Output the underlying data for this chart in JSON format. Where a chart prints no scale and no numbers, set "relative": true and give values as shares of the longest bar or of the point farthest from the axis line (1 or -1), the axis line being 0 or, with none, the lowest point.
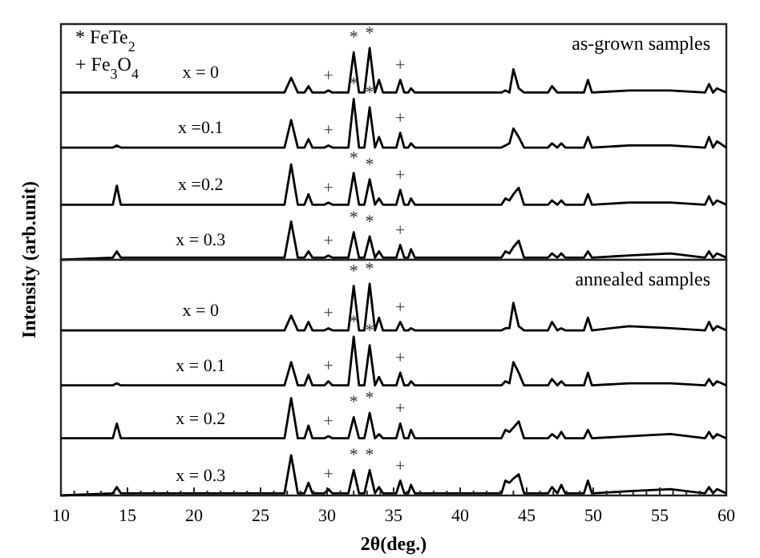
{
  "chart_data": [
    {
      "type": "line",
      "relative": true,
      "xlim": [
        10,
        60
      ],
      "ylabel": "Intensity (arb.unit)",
      "annotations": [
        "* FeTe$_{2}$",
        "+ Fe$_{3}$O$_{4}$",
        "as-grown samples",
        {
          "text": "*",
          "x": 32.0,
          "y": 0.98
        },
        {
          "text": "*",
          "x": 33.2,
          "y": 1.0
        },
        {
          "text": "+",
          "x": 30.1,
          "y": 0.8
        },
        {
          "text": "+",
          "x": 35.5,
          "y": 0.85
        },
        {
          "text": "*",
          "x": 32.0,
          "y": 0.76
        },
        {
          "text": "*",
          "x": 33.2,
          "y": 0.72
        },
        {
          "text": "+",
          "x": 30.1,
          "y": 0.54
        },
        {
          "text": "+",
          "x": 35.5,
          "y": 0.6
        },
        {
          "text": "*",
          "x": 32.0,
          "y": 0.41
        },
        {
          "text": "*",
          "x": 33.2,
          "y": 0.38
        },
        {
          "text": "+",
          "x": 30.1,
          "y": 0.27
        },
        {
          "text": "+",
          "x": 35.5,
          "y": 0.33
        },
        {
          "text": "*",
          "x": 32.0,
          "y": 0.13
        },
        {
          "text": "*",
          "x": 33.2,
          "y": 0.11
        },
        {
          "text": "+",
          "x": 30.1,
          "y": 0.02
        },
        {
          "text": "+",
          "x": 35.5,
          "y": 0.07
        }
      ],
      "x": [
        10,
        13.9,
        14.2,
        14.5,
        26.8,
        27.3,
        27.8,
        28.3,
        28.6,
        28.9,
        29.8,
        30.1,
        30.4,
        31.6,
        32.0,
        32.4,
        32.8,
        33.2,
        33.6,
        33.9,
        34.2,
        35.2,
        35.5,
        35.8,
        36.1,
        36.3,
        36.6,
        43.1,
        43.4,
        43.7,
        44.0,
        44.4,
        44.8,
        46.6,
        46.9,
        47.3,
        47.6,
        47.9,
        49.3,
        49.6,
        49.9,
        52.7,
        55.8,
        58.4,
        58.7,
        59.0,
        59.3,
        60
      ],
      "series": [
        {
          "name": "x = 0",
          "color": "#000000",
          "values": [
            0.79,
            0.79,
            0.79,
            0.79,
            0.79,
            0.86,
            0.79,
            0.79,
            0.82,
            0.79,
            0.79,
            0.8,
            0.79,
            0.79,
            0.98,
            0.79,
            0.79,
            1,
            0.79,
            0.85,
            0.79,
            0.79,
            0.85,
            0.79,
            0.79,
            0.81,
            0.79,
            0.79,
            0.8,
            0.79,
            0.9,
            0.81,
            0.79,
            0.79,
            0.82,
            0.79,
            0.79,
            0.79,
            0.79,
            0.85,
            0.79,
            0.8,
            0.8,
            0.79,
            0.83,
            0.79,
            0.81,
            0.79
          ]
        },
        {
          "name": "x =0.1",
          "color": "#000000",
          "values": [
            0.53,
            0.53,
            0.54,
            0.53,
            0.53,
            0.66,
            0.53,
            0.53,
            0.57,
            0.53,
            0.53,
            0.54,
            0.53,
            0.53,
            0.76,
            0.53,
            0.53,
            0.72,
            0.53,
            0.58,
            0.53,
            0.53,
            0.6,
            0.53,
            0.53,
            0.55,
            0.53,
            0.53,
            0.54,
            0.55,
            0.62,
            0.58,
            0.53,
            0.53,
            0.55,
            0.53,
            0.55,
            0.53,
            0.53,
            0.58,
            0.53,
            0.54,
            0.54,
            0.53,
            0.58,
            0.53,
            0.56,
            0.53
          ]
        },
        {
          "name": "x =0.2",
          "color": "#000000",
          "values": [
            0.26,
            0.26,
            0.35,
            0.26,
            0.26,
            0.45,
            0.26,
            0.26,
            0.31,
            0.26,
            0.26,
            0.27,
            0.26,
            0.26,
            0.41,
            0.26,
            0.26,
            0.38,
            0.26,
            0.29,
            0.26,
            0.26,
            0.33,
            0.26,
            0.26,
            0.29,
            0.26,
            0.26,
            0.29,
            0.28,
            0.31,
            0.34,
            0.26,
            0.26,
            0.28,
            0.26,
            0.28,
            0.26,
            0.26,
            0.31,
            0.26,
            0.27,
            0.27,
            0.26,
            0.3,
            0.26,
            0.28,
            0.26
          ]
        },
        {
          "name": "x = 0.3",
          "color": "#000000",
          "values": [
            0,
            0.01,
            0.04,
            0.01,
            0.01,
            0.18,
            0.01,
            0.01,
            0.04,
            0.01,
            0.01,
            0.02,
            0.01,
            0.01,
            0.13,
            0.01,
            0.01,
            0.11,
            0.01,
            0.04,
            0.01,
            0.01,
            0.07,
            0.01,
            0.01,
            0.05,
            0.01,
            0.01,
            0.04,
            0.03,
            0.06,
            0.09,
            0.01,
            0.01,
            0.03,
            0.01,
            0.03,
            0.01,
            0.01,
            0.04,
            0.01,
            0.02,
            0.03,
            0.01,
            0.04,
            0.01,
            0.03,
            0.01
          ]
        }
      ]
    },
    {
      "type": "line",
      "relative": true,
      "tick_labels": "x",
      "xlim": [
        10,
        60
      ],
      "xlabel": "2θ(deg.)",
      "xticks": [
        10,
        {
          "value": 11,
          "label": null
        },
        {
          "value": 12,
          "label": null
        },
        {
          "value": 13,
          "label": null
        },
        {
          "value": 14,
          "label": null
        },
        15,
        {
          "value": 16,
          "label": null
        },
        {
          "value": 17,
          "label": null
        },
        {
          "value": 18,
          "label": null
        },
        {
          "value": 19,
          "label": null
        },
        20,
        {
          "value": 21,
          "label": null
        },
        {
          "value": 22,
          "label": null
        },
        {
          "value": 23,
          "label": null
        },
        {
          "value": 24,
          "label": null
        },
        25,
        {
          "value": 26,
          "label": null
        },
        {
          "value": 27,
          "label": null
        },
        {
          "value": 28,
          "label": null
        },
        {
          "value": 29,
          "label": null
        },
        30,
        {
          "value": 31,
          "label": null
        },
        {
          "value": 32,
          "label": null
        },
        {
          "value": 33,
          "label": null
        },
        {
          "value": 34,
          "label": null
        },
        35,
        {
          "value": 36,
          "label": null
        },
        {
          "value": 37,
          "label": null
        },
        {
          "value": 38,
          "label": null
        },
        {
          "value": 39,
          "label": null
        },
        40,
        {
          "value": 41,
          "label": null
        },
        {
          "value": 42,
          "label": null
        },
        {
          "value": 43,
          "label": null
        },
        {
          "value": 44,
          "label": null
        },
        45,
        {
          "value": 46,
          "label": null
        },
        {
          "value": 47,
          "label": null
        },
        {
          "value": 48,
          "label": null
        },
        {
          "value": 49,
          "label": null
        },
        50,
        {
          "value": 51,
          "label": null
        },
        {
          "value": 52,
          "label": null
        },
        {
          "value": 53,
          "label": null
        },
        {
          "value": 54,
          "label": null
        },
        55,
        {
          "value": 56,
          "label": null
        },
        {
          "value": 57,
          "label": null
        },
        {
          "value": 58,
          "label": null
        },
        {
          "value": 59,
          "label": null
        },
        60
      ],
      "annotations": [
        "annealed samples",
        {
          "text": "*",
          "x": 32.0,
          "y": 0.99
        },
        {
          "text": "*",
          "x": 33.2,
          "y": 1.0
        },
        {
          "text": "+",
          "x": 30.1,
          "y": 0.79
        },
        {
          "text": "+",
          "x": 35.5,
          "y": 0.82
        },
        {
          "text": "*",
          "x": 32.0,
          "y": 0.75
        },
        {
          "text": "*",
          "x": 33.2,
          "y": 0.71
        },
        {
          "text": "+",
          "x": 30.1,
          "y": 0.54
        },
        {
          "text": "+",
          "x": 35.5,
          "y": 0.58
        },
        {
          "text": "*",
          "x": 32.0,
          "y": 0.37
        },
        {
          "text": "*",
          "x": 33.2,
          "y": 0.39
        },
        {
          "text": "+",
          "x": 30.1,
          "y": 0.28
        },
        {
          "text": "+",
          "x": 35.5,
          "y": 0.34
        },
        {
          "text": "*",
          "x": 32.0,
          "y": 0.12
        },
        {
          "text": "*",
          "x": 33.2,
          "y": 0.12
        },
        {
          "text": "+",
          "x": 30.1,
          "y": 0.03
        },
        {
          "text": "+",
          "x": 35.5,
          "y": 0.07
        }
      ],
      "x": [
        10,
        13.9,
        14.2,
        14.5,
        26.8,
        27.3,
        27.8,
        28.3,
        28.6,
        28.9,
        29.8,
        30.1,
        30.4,
        31.6,
        32.0,
        32.4,
        32.8,
        33.2,
        33.6,
        33.9,
        34.2,
        35.2,
        35.5,
        35.8,
        36.1,
        36.3,
        36.6,
        43.1,
        43.4,
        43.7,
        44.0,
        44.4,
        44.8,
        46.6,
        46.9,
        47.3,
        47.6,
        47.9,
        49.3,
        49.6,
        49.9,
        52.7,
        55.8,
        58.4,
        58.7,
        59.0,
        59.3,
        60
      ],
      "series": [
        {
          "name": "x = 0",
          "color": "#000000",
          "values": [
            0.78,
            0.78,
            0.78,
            0.78,
            0.78,
            0.85,
            0.78,
            0.78,
            0.82,
            0.78,
            0.78,
            0.79,
            0.78,
            0.78,
            0.99,
            0.78,
            0.78,
            1,
            0.78,
            0.84,
            0.78,
            0.78,
            0.82,
            0.78,
            0.78,
            0.79,
            0.78,
            0.78,
            0.79,
            0.79,
            0.91,
            0.8,
            0.78,
            0.78,
            0.82,
            0.78,
            0.79,
            0.78,
            0.78,
            0.84,
            0.78,
            0.8,
            0.79,
            0.78,
            0.82,
            0.78,
            0.8,
            0.78
          ]
        },
        {
          "name": "x = 0.1",
          "color": "#000000",
          "values": [
            0.52,
            0.52,
            0.53,
            0.52,
            0.52,
            0.63,
            0.52,
            0.52,
            0.57,
            0.52,
            0.52,
            0.54,
            0.52,
            0.52,
            0.75,
            0.52,
            0.52,
            0.71,
            0.52,
            0.56,
            0.52,
            0.52,
            0.58,
            0.52,
            0.52,
            0.54,
            0.52,
            0.52,
            0.54,
            0.53,
            0.63,
            0.58,
            0.52,
            0.52,
            0.55,
            0.52,
            0.54,
            0.52,
            0.52,
            0.58,
            0.52,
            0.53,
            0.53,
            0.52,
            0.55,
            0.52,
            0.54,
            0.52
          ]
        },
        {
          "name": "x = 0.2",
          "color": "#000000",
          "values": [
            0.27,
            0.27,
            0.34,
            0.27,
            0.27,
            0.46,
            0.27,
            0.27,
            0.33,
            0.27,
            0.27,
            0.28,
            0.27,
            0.27,
            0.37,
            0.27,
            0.27,
            0.39,
            0.27,
            0.29,
            0.27,
            0.27,
            0.34,
            0.27,
            0.27,
            0.31,
            0.27,
            0.27,
            0.31,
            0.3,
            0.32,
            0.35,
            0.27,
            0.27,
            0.29,
            0.27,
            0.3,
            0.27,
            0.27,
            0.31,
            0.27,
            0.28,
            0.29,
            0.27,
            0.3,
            0.27,
            0.29,
            0.27
          ]
        },
        {
          "name": "x = 0.3",
          "color": "#000000",
          "values": [
            0,
            0.01,
            0.04,
            0.01,
            0.01,
            0.19,
            0.01,
            0.01,
            0.06,
            0.01,
            0.01,
            0.03,
            0.01,
            0.01,
            0.12,
            0.01,
            0.01,
            0.12,
            0.01,
            0.04,
            0.01,
            0.01,
            0.07,
            0.01,
            0.01,
            0.05,
            0.01,
            0.01,
            0.07,
            0.06,
            0.08,
            0.1,
            0.01,
            0.01,
            0.04,
            0.01,
            0.05,
            0.01,
            0.01,
            0.07,
            0.01,
            0.02,
            0.03,
            0.01,
            0.04,
            0.01,
            0.03,
            0.01
          ]
        }
      ]
    }
  ]
}
